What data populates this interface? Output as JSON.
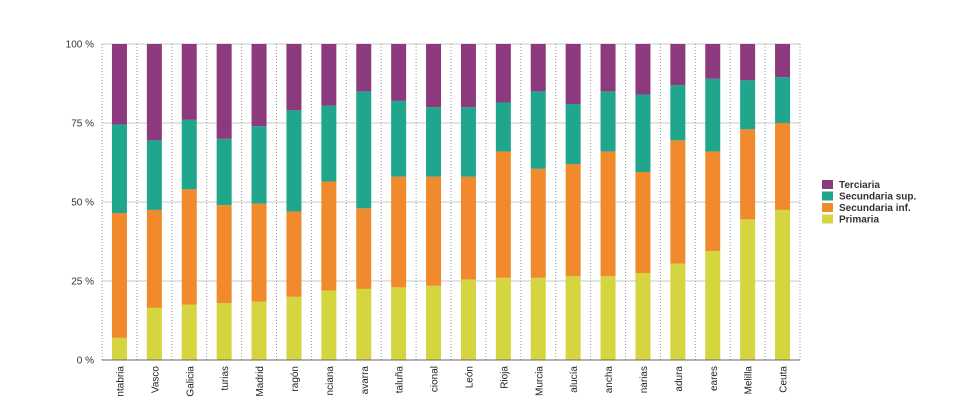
{
  "chart_data": {
    "type": "bar",
    "stacked": true,
    "normalized": true,
    "categories": [
      "Cantabria",
      "País Vasco",
      "Galicia",
      "Asturias",
      "Madrid",
      "Aragón",
      "C. Valenciana",
      "Navarra",
      "Cataluña",
      "Total Nacional",
      "Castilla y León",
      "La Rioja",
      "Murcia",
      "Andalucía",
      "Castilla-La Mancha",
      "Canarias",
      "Extremadura",
      "Baleares",
      "Melilla",
      "Ceuta"
    ],
    "tick_labels": [
      "ntabria",
      "Vasco",
      "Galicia",
      "turias",
      "Madrid",
      "ragón",
      "nciana",
      "avarra",
      "taluña",
      "cional",
      "León",
      "Rioja",
      "Murcia",
      "alucía",
      "ancha",
      "narias",
      "adura",
      "eares",
      "Melilla",
      "Ceuta"
    ],
    "series": [
      {
        "name": "Primaria",
        "color": "#d4d53f",
        "values": [
          7,
          16.5,
          17.5,
          18,
          18.5,
          20,
          22,
          22.5,
          23,
          23.5,
          25.5,
          26,
          26,
          26.5,
          26.5,
          27.5,
          30.5,
          34.5,
          44.5,
          47.5
        ]
      },
      {
        "name": "Secundaria inf.",
        "color": "#f08a2c",
        "values": [
          39.5,
          31,
          36.5,
          31,
          31,
          27,
          34.5,
          25.5,
          35,
          34.5,
          32.5,
          40,
          34.5,
          35.5,
          39.5,
          32,
          39,
          31.5,
          28.5,
          27.5
        ]
      },
      {
        "name": "Secundaria sup.",
        "color": "#1fa68c",
        "values": [
          28,
          22,
          22,
          21,
          24.5,
          32,
          24,
          37,
          24,
          22,
          22,
          15.5,
          24.5,
          19,
          19,
          24.5,
          17.5,
          23,
          15.5,
          14.5
        ]
      },
      {
        "name": "Terciaria",
        "color": "#8c3a7d",
        "values": [
          25.5,
          30.5,
          24,
          30,
          26,
          21,
          19.5,
          15,
          18,
          20,
          20,
          18.5,
          15,
          19,
          15,
          16,
          13,
          11,
          11.5,
          10.5
        ]
      }
    ],
    "yticks": [
      "0 %",
      "25 %",
      "50 %",
      "75 %",
      "100 %"
    ],
    "ylim": [
      0,
      100
    ],
    "grid": "horizontal + dotted vertical separators",
    "legend_placement": "right",
    "legend_order": [
      "Terciaria",
      "Secundaria sup.",
      "Secundaria inf.",
      "Primaria"
    ]
  }
}
